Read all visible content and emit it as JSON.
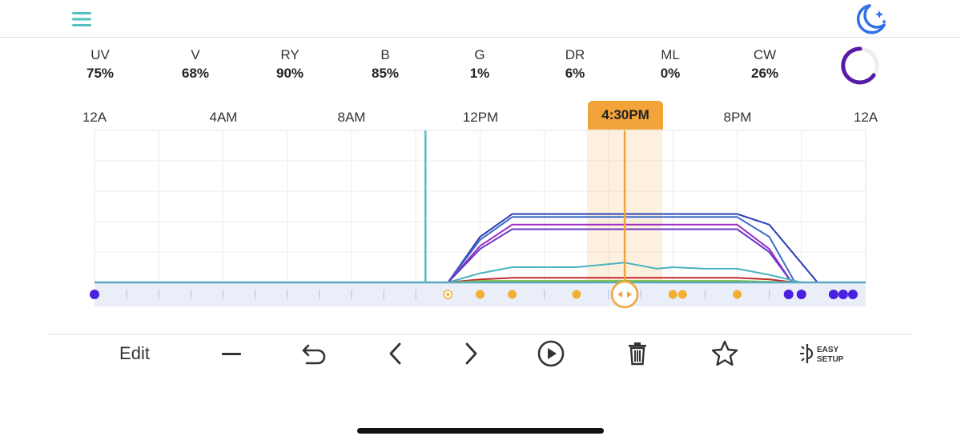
{
  "channels": [
    {
      "name": "UV",
      "value": "75%"
    },
    {
      "name": "V",
      "value": "68%"
    },
    {
      "name": "RY",
      "value": "90%"
    },
    {
      "name": "B",
      "value": "85%"
    },
    {
      "name": "G",
      "value": "1%"
    },
    {
      "name": "DR",
      "value": "6%"
    },
    {
      "name": "ML",
      "value": "0%"
    },
    {
      "name": "CW",
      "value": "26%"
    }
  ],
  "time_labels": [
    "12A",
    "4AM",
    "8AM",
    "12PM",
    "4:30PM",
    "8PM",
    "12A"
  ],
  "current_time_label": "4:30PM",
  "toolbar": {
    "edit_label": "Edit",
    "easy_setup_line1": "EASY",
    "easy_setup_line2": "SETUP"
  },
  "colors": {
    "accent_teal": "#4fc1c0",
    "accent_orange": "#f2a33a",
    "moon_blue": "#2f6fe8",
    "progress_purple": "#5a1aa8",
    "node_purple": "#4b1fe0",
    "node_orange": "#f2b033"
  },
  "icons": [
    "menu-icon",
    "moon-stars-icon",
    "progress-ring-icon",
    "minus-icon",
    "undo-icon",
    "chevron-left-icon",
    "chevron-right-icon",
    "play-circle-icon",
    "trash-icon",
    "star-icon",
    "easy-setup-icon"
  ],
  "chart_data": {
    "type": "line",
    "x_unit": "hour of day",
    "xlim": [
      0,
      24
    ],
    "ylim": [
      0,
      100
    ],
    "current_time_hours": 16.5,
    "now_marker_hours": 10.3,
    "series": [
      {
        "color": "#2a3fb5",
        "x": [
          11,
          12,
          13,
          20,
          21,
          22.5
        ],
        "y": [
          0,
          30,
          45,
          45,
          38,
          0
        ]
      },
      {
        "color": "#3d6cc9",
        "x": [
          11,
          12,
          13,
          20,
          21,
          21.8
        ],
        "y": [
          0,
          28,
          43,
          43,
          30,
          0
        ]
      },
      {
        "color": "#9b2dbf",
        "x": [
          11,
          12,
          13,
          20,
          21,
          21.7
        ],
        "y": [
          0,
          24,
          38,
          38,
          22,
          0
        ]
      },
      {
        "color": "#6a38c8",
        "x": [
          11,
          12,
          13,
          20,
          21,
          21.7
        ],
        "y": [
          0,
          22,
          35,
          35,
          20,
          0
        ]
      },
      {
        "color": "#4ab3bf",
        "x": [
          11,
          12,
          13,
          15,
          16.5,
          17.5,
          18,
          19,
          20,
          21,
          22
        ],
        "y": [
          0,
          6,
          10,
          10,
          13,
          9,
          10,
          9,
          9,
          5,
          0
        ]
      },
      {
        "color": "#c42a2a",
        "x": [
          11,
          12,
          13,
          20,
          21,
          21.8
        ],
        "y": [
          0,
          2,
          3,
          3,
          2,
          0
        ]
      },
      {
        "color": "#7bbf3a",
        "x": [
          11,
          12,
          20,
          21.8
        ],
        "y": [
          0,
          1,
          1,
          0
        ]
      }
    ],
    "node_times_orange": [
      11,
      12,
      13,
      15,
      18,
      18.3,
      20
    ],
    "node_times_purple": [
      0,
      21.6,
      22,
      23,
      23.3,
      23.6
    ]
  }
}
